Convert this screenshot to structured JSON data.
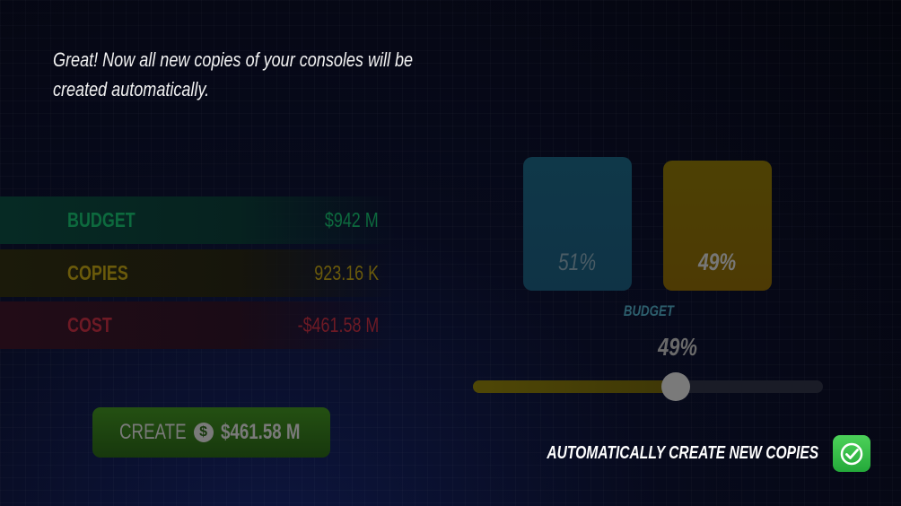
{
  "message": "Great! Now all new copies of your consoles will be created automatically.",
  "stats": [
    {
      "label": "BUDGET",
      "value": "$942 M",
      "color": "#0d6a3e"
    },
    {
      "label": "COPIES",
      "value": "923.16 K",
      "color": "#6a5a0b"
    },
    {
      "label": "COST",
      "value": "-$461.58 M",
      "color": "#6e1a25"
    }
  ],
  "create_button": {
    "label": "CREATE",
    "icon": "dollar-coin-icon",
    "amount": "$461.58 M"
  },
  "split": {
    "bars": [
      {
        "percent_label": "51%",
        "value": 51,
        "color": "#0f3849"
      },
      {
        "percent_label": "49%",
        "value": 49,
        "color": "#4d4104"
      }
    ],
    "label": "BUDGET",
    "slider_label": "49%",
    "slider_value": 49
  },
  "auto_toggle": {
    "label": "AUTOMATICALLY CREATE NEW COPIES",
    "checked": true,
    "icon": "check-circle-icon",
    "color": "#3cc24c"
  }
}
